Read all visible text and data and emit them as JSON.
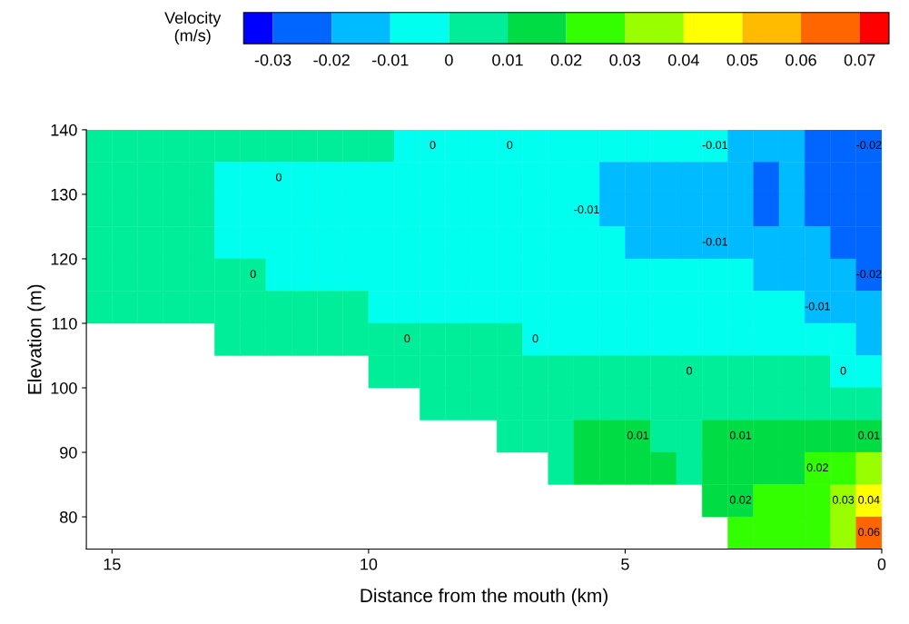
{
  "chart_data": {
    "type": "heatmap",
    "xlabel": "Distance from the mouth (km)",
    "ylabel": "Elevation (m)",
    "clabel": "Velocity\n(m/s)",
    "xlim": [
      15.5,
      0
    ],
    "xticks": [
      15,
      10,
      5,
      0
    ],
    "ylim": [
      75,
      140
    ],
    "yticks": [
      80,
      90,
      100,
      110,
      120,
      130,
      140
    ],
    "clim": [
      -0.035,
      0.075
    ],
    "cticks": [
      -0.03,
      -0.02,
      -0.01,
      0,
      0.01,
      0.02,
      0.03,
      0.04,
      0.05,
      0.06,
      0.07
    ],
    "colors": [
      "#0000ff",
      "#0066ff",
      "#00bbff",
      "#00ffee",
      "#00ee99",
      "#00dd44",
      "#33ff00",
      "#99ff00",
      "#ffff00",
      "#ffbb00",
      "#ff6600",
      "#ff0000"
    ],
    "grid": false,
    "cells": [
      [
        0.005,
        0.005,
        0.005,
        0.005,
        0.005,
        0.005,
        0.005,
        0.005,
        0.005,
        0.005,
        0.005,
        0.005,
        -0.005,
        -0.005,
        -0.005,
        -0.005,
        -0.005,
        -0.005,
        -0.005,
        -0.005,
        -0.005,
        -0.005,
        -0.005,
        -0.005,
        -0.005,
        -0.015,
        -0.015,
        -0.015,
        -0.025,
        -0.025,
        -0.025
      ],
      [
        0.005,
        0.005,
        0.005,
        0.005,
        0.005,
        -0.005,
        -0.005,
        -0.005,
        -0.005,
        -0.005,
        -0.005,
        -0.005,
        -0.005,
        -0.005,
        -0.005,
        -0.005,
        -0.005,
        -0.005,
        -0.005,
        -0.005,
        -0.015,
        -0.015,
        -0.015,
        -0.015,
        -0.015,
        -0.015,
        -0.025,
        -0.015,
        -0.025,
        -0.025,
        -0.025
      ],
      [
        0.005,
        0.005,
        0.005,
        0.005,
        0.005,
        -0.005,
        -0.005,
        -0.005,
        -0.005,
        -0.005,
        -0.005,
        -0.005,
        -0.005,
        -0.005,
        -0.005,
        -0.005,
        -0.005,
        -0.005,
        -0.005,
        -0.005,
        -0.015,
        -0.015,
        -0.015,
        -0.015,
        -0.015,
        -0.015,
        -0.025,
        -0.015,
        -0.025,
        -0.025,
        -0.025
      ],
      [
        0.005,
        0.005,
        0.005,
        0.005,
        0.005,
        -0.005,
        -0.005,
        -0.005,
        -0.005,
        -0.005,
        -0.005,
        -0.005,
        -0.005,
        -0.005,
        -0.005,
        -0.005,
        -0.005,
        -0.005,
        -0.005,
        -0.005,
        -0.005,
        -0.015,
        -0.015,
        -0.015,
        -0.015,
        -0.015,
        -0.015,
        -0.015,
        -0.015,
        -0.025,
        -0.025
      ],
      [
        0.005,
        0.005,
        0.005,
        0.005,
        0.005,
        0.005,
        0.005,
        -0.005,
        -0.005,
        -0.005,
        -0.005,
        -0.005,
        -0.005,
        -0.005,
        -0.005,
        -0.005,
        -0.005,
        -0.005,
        -0.005,
        -0.005,
        -0.005,
        -0.005,
        -0.005,
        -0.005,
        -0.005,
        -0.005,
        -0.015,
        -0.015,
        -0.015,
        -0.015,
        -0.025
      ],
      [
        0.005,
        0.005,
        0.005,
        0.005,
        0.005,
        0.005,
        0.005,
        0.005,
        0.005,
        0.005,
        0.005,
        -0.005,
        -0.005,
        -0.005,
        -0.005,
        -0.005,
        -0.005,
        -0.005,
        -0.005,
        -0.005,
        -0.005,
        -0.005,
        -0.005,
        -0.005,
        -0.005,
        -0.005,
        -0.005,
        -0.005,
        -0.015,
        -0.015,
        -0.015
      ],
      [
        null,
        null,
        null,
        null,
        null,
        0.005,
        0.005,
        0.005,
        0.005,
        0.005,
        0.005,
        0.005,
        0.005,
        0.005,
        0.005,
        0.005,
        0.005,
        -0.005,
        -0.005,
        -0.005,
        -0.005,
        -0.005,
        -0.005,
        -0.005,
        -0.005,
        -0.005,
        -0.005,
        -0.005,
        -0.005,
        -0.005,
        -0.015
      ],
      [
        null,
        null,
        null,
        null,
        null,
        null,
        null,
        null,
        null,
        null,
        null,
        0.005,
        0.005,
        0.005,
        0.005,
        0.005,
        0.005,
        0.005,
        0.005,
        0.005,
        0.005,
        0.005,
        0.005,
        0.005,
        0.005,
        0.005,
        0.005,
        0.005,
        0.005,
        -0.005,
        -0.005
      ],
      [
        null,
        null,
        null,
        null,
        null,
        null,
        null,
        null,
        null,
        null,
        null,
        null,
        null,
        0.005,
        0.005,
        0.005,
        0.005,
        0.005,
        0.005,
        0.005,
        0.005,
        0.005,
        0.005,
        0.005,
        0.005,
        0.005,
        0.005,
        0.005,
        0.005,
        0.005,
        0.005
      ],
      [
        null,
        null,
        null,
        null,
        null,
        null,
        null,
        null,
        null,
        null,
        null,
        null,
        null,
        null,
        null,
        null,
        0.005,
        0.005,
        0.005,
        0.015,
        0.015,
        0.015,
        0.005,
        0.005,
        0.015,
        0.015,
        0.015,
        0.015,
        0.015,
        0.015,
        0.015
      ],
      [
        null,
        null,
        null,
        null,
        null,
        null,
        null,
        null,
        null,
        null,
        null,
        null,
        null,
        null,
        null,
        null,
        null,
        null,
        0.005,
        0.015,
        0.015,
        0.015,
        0.015,
        0.005,
        0.015,
        0.015,
        0.015,
        0.015,
        0.025,
        0.025,
        0.035
      ],
      [
        null,
        null,
        null,
        null,
        null,
        null,
        null,
        null,
        null,
        null,
        null,
        null,
        null,
        null,
        null,
        null,
        null,
        null,
        null,
        null,
        null,
        null,
        null,
        null,
        0.015,
        0.015,
        0.025,
        0.025,
        0.025,
        0.035,
        0.045
      ],
      [
        null,
        null,
        null,
        null,
        null,
        null,
        null,
        null,
        null,
        null,
        null,
        null,
        null,
        null,
        null,
        null,
        null,
        null,
        null,
        null,
        null,
        null,
        null,
        null,
        null,
        0.025,
        0.025,
        0.025,
        0.025,
        0.035,
        0.06
      ]
    ],
    "cell_labels": [
      [
        null,
        null,
        null,
        null,
        null,
        null,
        null,
        null,
        null,
        null,
        null,
        null,
        null,
        "0",
        null,
        null,
        "0",
        null,
        null,
        null,
        null,
        null,
        null,
        null,
        "-0.01",
        null,
        null,
        null,
        null,
        null,
        "-0.02"
      ],
      [
        null,
        null,
        null,
        null,
        null,
        null,
        null,
        "0",
        null,
        null,
        null,
        null,
        null,
        null,
        null,
        null,
        null,
        null,
        null,
        null,
        null,
        null,
        null,
        null,
        null,
        null,
        null,
        null,
        null,
        null,
        null
      ],
      [
        null,
        null,
        null,
        null,
        null,
        null,
        null,
        null,
        null,
        null,
        null,
        null,
        null,
        null,
        null,
        null,
        null,
        null,
        null,
        "-0.01",
        null,
        null,
        null,
        null,
        null,
        null,
        null,
        null,
        null,
        null,
        null
      ],
      [
        null,
        null,
        null,
        null,
        null,
        null,
        null,
        null,
        null,
        null,
        null,
        null,
        null,
        null,
        null,
        null,
        null,
        null,
        null,
        null,
        null,
        null,
        null,
        null,
        "-0.01",
        null,
        null,
        null,
        null,
        null,
        null
      ],
      [
        null,
        null,
        null,
        null,
        null,
        null,
        "0",
        null,
        null,
        null,
        null,
        null,
        null,
        null,
        null,
        null,
        null,
        null,
        null,
        null,
        null,
        null,
        null,
        null,
        null,
        null,
        null,
        null,
        null,
        null,
        "-0.02"
      ],
      [
        null,
        null,
        null,
        null,
        null,
        null,
        null,
        null,
        null,
        null,
        null,
        null,
        null,
        null,
        null,
        null,
        null,
        null,
        null,
        null,
        null,
        null,
        null,
        null,
        null,
        null,
        null,
        null,
        "-0.01",
        null,
        null
      ],
      [
        null,
        null,
        null,
        null,
        null,
        null,
        null,
        null,
        null,
        null,
        null,
        null,
        "0",
        null,
        null,
        null,
        null,
        "0",
        null,
        null,
        null,
        null,
        null,
        null,
        null,
        null,
        null,
        null,
        null,
        null,
        null
      ],
      [
        null,
        null,
        null,
        null,
        null,
        null,
        null,
        null,
        null,
        null,
        null,
        null,
        null,
        null,
        null,
        null,
        null,
        null,
        null,
        null,
        null,
        null,
        null,
        "0",
        null,
        null,
        null,
        null,
        null,
        "0",
        null
      ],
      [
        null,
        null,
        null,
        null,
        null,
        null,
        null,
        null,
        null,
        null,
        null,
        null,
        null,
        null,
        null,
        null,
        null,
        null,
        null,
        null,
        null,
        null,
        null,
        null,
        null,
        null,
        null,
        null,
        null,
        null,
        null
      ],
      [
        null,
        null,
        null,
        null,
        null,
        null,
        null,
        null,
        null,
        null,
        null,
        null,
        null,
        null,
        null,
        null,
        null,
        null,
        null,
        null,
        null,
        "0.01",
        null,
        null,
        null,
        "0.01",
        null,
        null,
        null,
        null,
        "0.01"
      ],
      [
        null,
        null,
        null,
        null,
        null,
        null,
        null,
        null,
        null,
        null,
        null,
        null,
        null,
        null,
        null,
        null,
        null,
        null,
        null,
        null,
        null,
        null,
        null,
        null,
        null,
        null,
        null,
        null,
        "0.02",
        null,
        null
      ],
      [
        null,
        null,
        null,
        null,
        null,
        null,
        null,
        null,
        null,
        null,
        null,
        null,
        null,
        null,
        null,
        null,
        null,
        null,
        null,
        null,
        null,
        null,
        null,
        null,
        null,
        "0.02",
        null,
        null,
        null,
        "0.03",
        "0.04"
      ],
      [
        null,
        null,
        null,
        null,
        null,
        null,
        null,
        null,
        null,
        null,
        null,
        null,
        null,
        null,
        null,
        null,
        null,
        null,
        null,
        null,
        null,
        null,
        null,
        null,
        null,
        null,
        null,
        null,
        null,
        null,
        "0.06"
      ]
    ]
  }
}
